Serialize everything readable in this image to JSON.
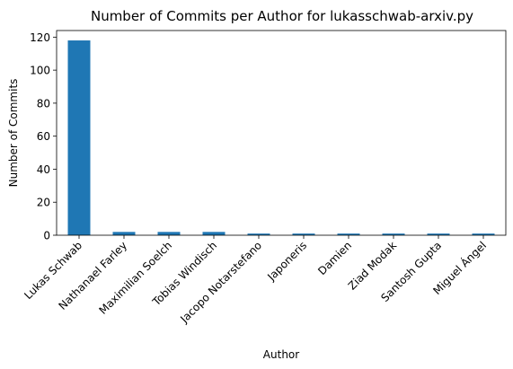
{
  "chart_data": {
    "type": "bar",
    "title": "Number of Commits per Author for lukasschwab-arxiv.py",
    "xlabel": "Author",
    "ylabel": "Number of Commits",
    "categories": [
      "Lukas Schwab",
      "Nathanael Farley",
      "Maximilian Soelch",
      "Tobias Windisch",
      "Jacopo Notarstefano",
      "Japoneris",
      "Damien",
      "Ziad Modak",
      "Santosh Gupta",
      "Miguel Ángel"
    ],
    "values": [
      118,
      2,
      2,
      2,
      1,
      1,
      1,
      1,
      1,
      1
    ],
    "ylim": [
      0,
      124
    ],
    "yticks": [
      0,
      20,
      40,
      60,
      80,
      100,
      120
    ],
    "grid": false,
    "bar_color": "#1f77b4"
  }
}
